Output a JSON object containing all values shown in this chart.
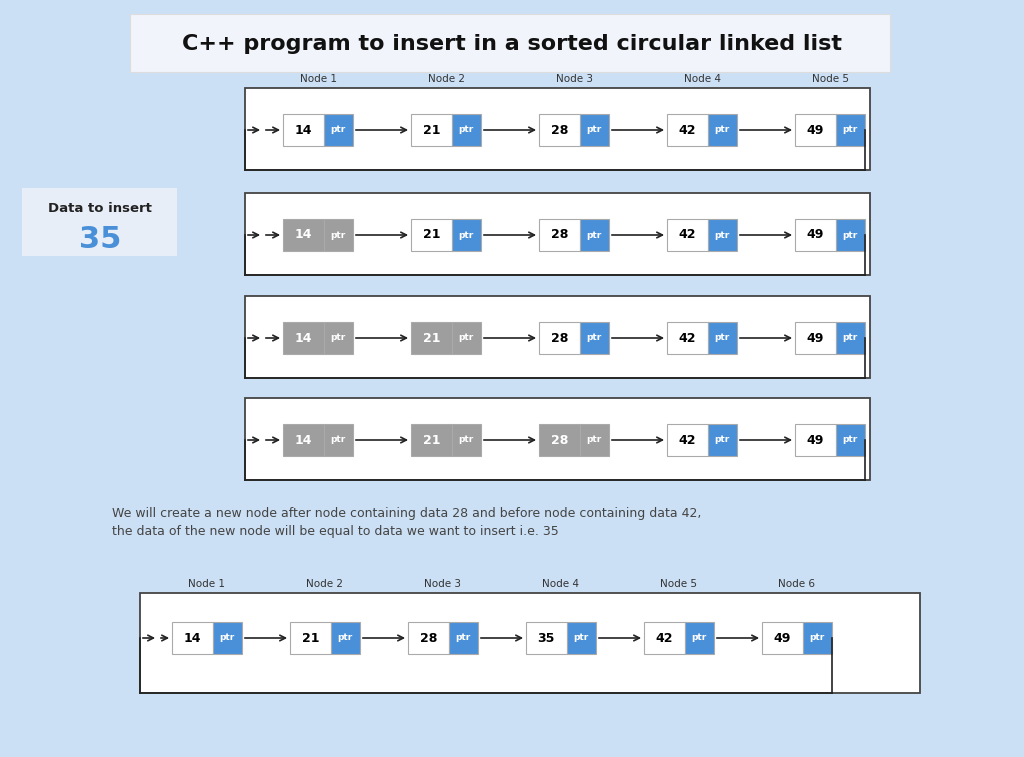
{
  "title": "C++ program to insert in a sorted circular linked list",
  "bg_color": "#cce0f5",
  "white_bg": "#ffffff",
  "title_bg": "#f2f4fb",
  "blue_color": "#4a90d9",
  "gray_color": "#9e9e9e",
  "gray_ptr_color": "#8a8a8a",
  "node_border": "#aaaaaa",
  "arrow_color": "#222222",
  "node_values_row1": [
    14,
    21,
    28,
    42,
    49
  ],
  "node_values_row2": [
    14,
    21,
    28,
    42,
    49
  ],
  "node_values_row3": [
    14,
    21,
    28,
    42,
    49
  ],
  "node_values_row4": [
    14,
    21,
    28,
    42,
    49
  ],
  "node_values_final": [
    14,
    21,
    28,
    35,
    42,
    49
  ],
  "row2_gray": [
    1,
    0,
    0,
    0,
    0
  ],
  "row3_gray": [
    1,
    1,
    0,
    0,
    0
  ],
  "row4_gray": [
    1,
    1,
    1,
    0,
    0
  ],
  "insert_value": 35,
  "node_labels_5": [
    "Node 1",
    "Node 2",
    "Node 3",
    "Node 4",
    "Node 5"
  ],
  "node_labels_6": [
    "Node 1",
    "Node 2",
    "Node 3",
    "Node 4",
    "Node 5",
    "Node 6"
  ],
  "description_line1": "We will create a new node after node containing data 28 and before node containing data 42,",
  "description_line2": "the data of the new node will be equal to data we want to insert i.e. 35"
}
